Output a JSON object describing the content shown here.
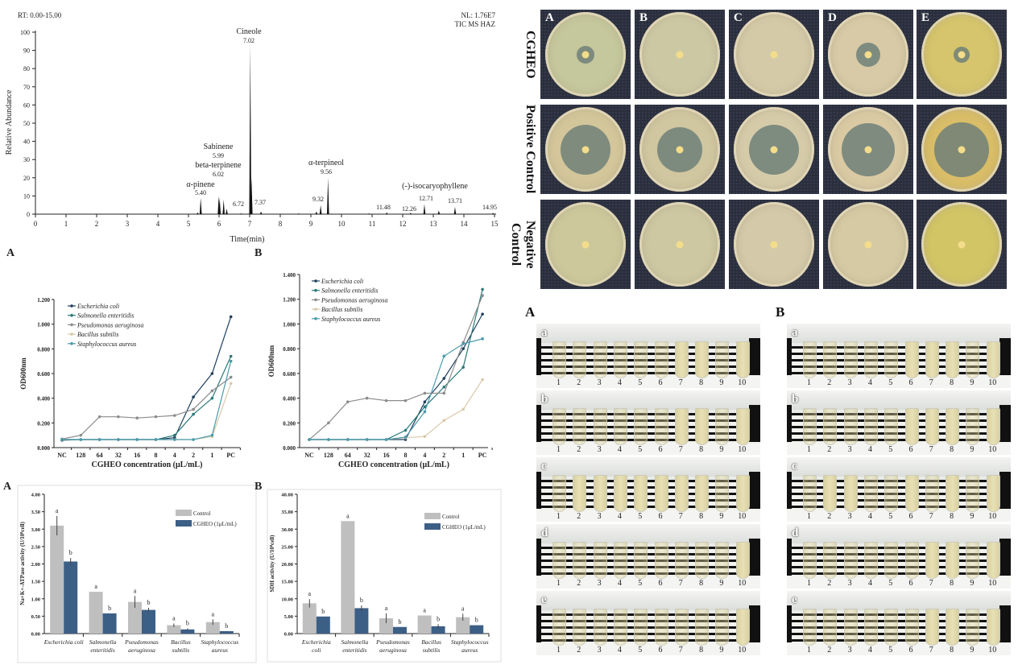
{
  "colors": {
    "ecoli": "#1f3f5f",
    "salmonella": "#2a7a78",
    "pseudomonas": "#8c8c8c",
    "bacillus": "#d9c9a8",
    "staph": "#4a9aaa",
    "control_bar": "#bfbfbf",
    "cgheo_bar": "#3c5f86"
  },
  "chart_data": [
    {
      "type": "line",
      "title": "",
      "header_left": "RT: 0.00-15.00",
      "header_right": [
        "NL: 1.76E7",
        "TIC MS HAZ"
      ],
      "xlabel": "Time(min)",
      "ylabel": "Relative Abundance",
      "xlim": [
        0,
        15
      ],
      "ylim": [
        0,
        100
      ],
      "xticks": [
        "0",
        "1",
        "2",
        "3",
        "4",
        "5",
        "6",
        "7",
        "8",
        "9",
        "10",
        "11",
        "12",
        "13",
        "14",
        "15"
      ],
      "yticks": [
        "0",
        "10",
        "20",
        "30",
        "40",
        "50",
        "60",
        "70",
        "80",
        "90",
        "100"
      ],
      "peaks": [
        {
          "rt": 5.3,
          "abundance": 1
        },
        {
          "rt": 5.4,
          "abundance": 9
        },
        {
          "rt": 5.99,
          "abundance": 10
        },
        {
          "rt": 6.02,
          "abundance": 9
        },
        {
          "rt": 6.15,
          "abundance": 8
        },
        {
          "rt": 6.25,
          "abundance": 3
        },
        {
          "rt": 6.72,
          "abundance": 0.5
        },
        {
          "rt": 7.02,
          "abundance": 93
        },
        {
          "rt": 7.06,
          "abundance": 20
        },
        {
          "rt": 7.37,
          "abundance": 1.5
        },
        {
          "rt": 8.6,
          "abundance": 0.5
        },
        {
          "rt": 9.18,
          "abundance": 1.5
        },
        {
          "rt": 9.32,
          "abundance": 5
        },
        {
          "rt": 9.56,
          "abundance": 20
        },
        {
          "rt": 10.9,
          "abundance": 0.5
        },
        {
          "rt": 11.48,
          "abundance": 1
        },
        {
          "rt": 12.26,
          "abundance": 0.8
        },
        {
          "rt": 12.71,
          "abundance": 5.5
        },
        {
          "rt": 13.18,
          "abundance": 2
        },
        {
          "rt": 13.71,
          "abundance": 4
        },
        {
          "rt": 14.95,
          "abundance": 0.8
        }
      ],
      "annotations": [
        {
          "name": "Cineole",
          "rt_label": "7.02"
        },
        {
          "name": "Sabinene",
          "rt_label": "5.99"
        },
        {
          "name": "beta-terpinene",
          "rt_label": "6.02"
        },
        {
          "name": "α-pinene",
          "rt_label": "5.40"
        },
        {
          "name": "α-terpineol",
          "rt_label": "9.56"
        },
        {
          "name": "(-)-isocaryophyllene",
          "rt_label": "12.71"
        },
        {
          "name": "",
          "rt_label": "6.72"
        },
        {
          "name": "",
          "rt_label": "7.37"
        },
        {
          "name": "",
          "rt_label": "9.32"
        },
        {
          "name": "",
          "rt_label": "11.48"
        },
        {
          "name": "",
          "rt_label": "12.26"
        },
        {
          "name": "",
          "rt_label": "13.71"
        },
        {
          "name": "",
          "rt_label": "14.95"
        }
      ]
    },
    {
      "type": "line",
      "panel": "A",
      "xlabel": "CGHEO concentration  (μL/mL)",
      "ylabel": "OD600nm",
      "categories": [
        "NC",
        "128",
        "64",
        "32",
        "16",
        "8",
        "4",
        "2",
        "1",
        "PC"
      ],
      "ylim": [
        0,
        1.2
      ],
      "yticks": [
        "0.000",
        "0.200",
        "0.400",
        "0.600",
        "0.800",
        "1.000",
        "1.200"
      ],
      "legend": "top-left",
      "series": [
        {
          "name": "Escherichia coli",
          "key": "ecoli",
          "values": [
            0.06,
            0.065,
            0.065,
            0.065,
            0.065,
            0.065,
            0.08,
            0.41,
            0.6,
            1.06
          ]
        },
        {
          "name": "Salmonella enteritidis",
          "key": "salmonella",
          "values": [
            0.065,
            0.065,
            0.065,
            0.065,
            0.065,
            0.065,
            0.1,
            0.27,
            0.4,
            0.74
          ]
        },
        {
          "name": "Pseudomonas aeruginosa",
          "key": "pseudomonas",
          "values": [
            0.07,
            0.1,
            0.25,
            0.25,
            0.24,
            0.25,
            0.26,
            0.31,
            0.46,
            0.57
          ]
        },
        {
          "name": "Bacillus subtilis",
          "key": "bacillus",
          "values": [
            0.065,
            0.065,
            0.065,
            0.065,
            0.065,
            0.065,
            0.065,
            0.065,
            0.09,
            0.52
          ]
        },
        {
          "name": "Staphylococcus aureus",
          "key": "staph",
          "values": [
            0.065,
            0.065,
            0.065,
            0.065,
            0.065,
            0.065,
            0.065,
            0.065,
            0.1,
            0.7
          ]
        }
      ]
    },
    {
      "type": "line",
      "panel": "B",
      "xlabel": "CGHEO concentration (μL/mL)",
      "ylabel": "OD600nm",
      "categories": [
        "NC",
        "128",
        "64",
        "32",
        "16",
        "8",
        "4",
        "2",
        "1",
        "PC"
      ],
      "ylim": [
        0,
        1.4
      ],
      "yticks": [
        "0.000",
        "0.200",
        "0.400",
        "0.600",
        "0.800",
        "1.000",
        "1.200",
        "1.400"
      ],
      "legend": "top-left",
      "series": [
        {
          "name": "Escherichia coli",
          "key": "ecoli",
          "values": [
            0.065,
            0.065,
            0.065,
            0.065,
            0.065,
            0.065,
            0.37,
            0.56,
            0.8,
            1.08
          ]
        },
        {
          "name": "Salmonella enteritidis",
          "key": "salmonella",
          "values": [
            0.065,
            0.065,
            0.065,
            0.065,
            0.065,
            0.14,
            0.33,
            0.49,
            0.65,
            1.28
          ]
        },
        {
          "name": "Pseudomonas aeruginosa",
          "key": "pseudomonas",
          "values": [
            0.065,
            0.2,
            0.37,
            0.4,
            0.38,
            0.38,
            0.44,
            0.44,
            0.85,
            1.23
          ]
        },
        {
          "name": "Bacillus subtilis",
          "key": "bacillus",
          "values": [
            0.065,
            0.065,
            0.065,
            0.065,
            0.065,
            0.08,
            0.09,
            0.22,
            0.31,
            0.55
          ]
        },
        {
          "name": "Staphylococcus aureus",
          "key": "staph",
          "values": [
            0.065,
            0.065,
            0.065,
            0.065,
            0.065,
            0.085,
            0.29,
            0.74,
            0.84,
            0.88
          ]
        }
      ]
    },
    {
      "type": "bar",
      "panel": "A",
      "ylabel": "Na+K+-ATPase activity (U/10⁸cell)",
      "categories": [
        [
          "Escherichia coli",
          ""
        ],
        [
          "Salmonella",
          "enteritidis"
        ],
        [
          "Pseudomonas",
          "aeruginosa"
        ],
        [
          "Bacillus",
          "subtilis"
        ],
        [
          "Staphylococcus",
          "aureus"
        ]
      ],
      "ylim": [
        0,
        4
      ],
      "yticks": [
        "0.00",
        "0.50",
        "1.00",
        "1.50",
        "2.00",
        "2.50",
        "3.00",
        "3.50",
        "4.00"
      ],
      "legend": "top-right",
      "series": [
        {
          "name": "Control",
          "key": "control_bar",
          "values": [
            3.1,
            1.2,
            0.91,
            0.24,
            0.33
          ],
          "errors": [
            0.28,
            0,
            0.17,
            0.05,
            0.08
          ],
          "letters": [
            "a",
            "a",
            "a",
            "a",
            "a"
          ]
        },
        {
          "name": "CGHEO (1μL/mL)",
          "key": "cgheo_bar",
          "values": [
            2.07,
            0.58,
            0.68,
            0.12,
            0.07
          ],
          "errors": [
            0.1,
            0,
            0.06,
            0.03,
            0
          ],
          "letters": [
            "b",
            "b",
            "b",
            "b",
            "b"
          ]
        }
      ]
    },
    {
      "type": "bar",
      "panel": "B",
      "ylabel": "SDH activity (U/10⁸cell)",
      "categories": [
        [
          "Escherichia",
          "coli"
        ],
        [
          "Salmonella",
          "enteritidis"
        ],
        [
          "Pseudomonas",
          "aeruginosa"
        ],
        [
          "Bacillus",
          "subtilis"
        ],
        [
          "Staphylococcus",
          "aureus"
        ]
      ],
      "ylim": [
        0,
        40
      ],
      "yticks": [
        "0.00",
        "5.00",
        "10.00",
        "15.00",
        "20.00",
        "25.00",
        "30.00",
        "35.00",
        "40.00"
      ],
      "legend": "top-right",
      "series": [
        {
          "name": "Control",
          "key": "control_bar",
          "values": [
            8.7,
            32.3,
            4.4,
            5.2,
            4.7
          ],
          "errors": [
            1.2,
            0,
            1.4,
            0,
            1.0
          ],
          "letters": [
            "a",
            "a",
            "a",
            "a",
            "a"
          ]
        },
        {
          "name": "CGHEO (1μL/mL)",
          "key": "cgheo_bar",
          "values": [
            4.9,
            7.3,
            1.9,
            2.1,
            2.4
          ],
          "errors": [
            0,
            0.8,
            0,
            0.6,
            0
          ],
          "letters": [
            "b",
            "b",
            "b",
            "b",
            "b"
          ]
        }
      ]
    }
  ],
  "plates": {
    "columns": [
      "A",
      "B",
      "C",
      "D",
      "E"
    ],
    "rows": [
      "CGHEO",
      "Positive Control",
      "Negative Control"
    ]
  },
  "tubes": {
    "panels": [
      "A",
      "B"
    ],
    "rows": [
      "a",
      "b",
      "c",
      "d",
      "e"
    ],
    "numbers": [
      "1",
      "2",
      "3",
      "4",
      "5",
      "6",
      "7",
      "8",
      "9",
      "10"
    ]
  }
}
